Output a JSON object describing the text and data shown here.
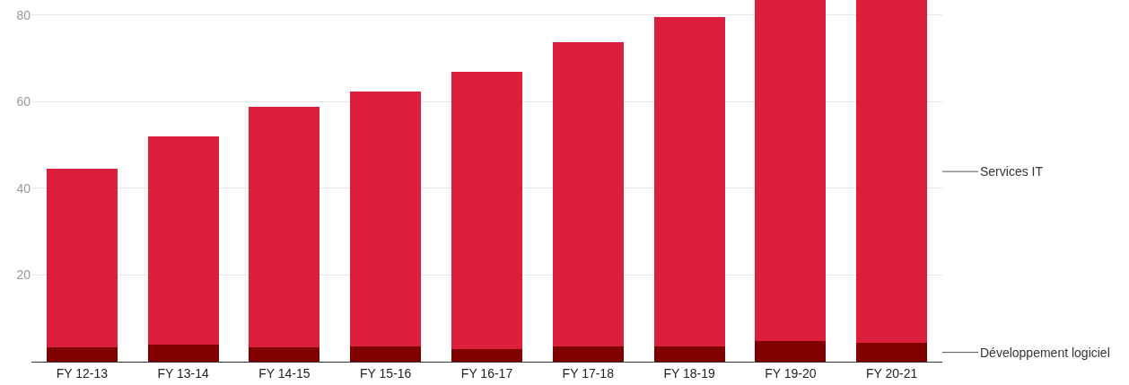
{
  "chart_data": {
    "type": "bar",
    "stacked": true,
    "categories": [
      "FY 12-13",
      "FY 13-14",
      "FY 14-15",
      "FY 15-16",
      "FY 16-17",
      "FY 17-18",
      "FY 18-19",
      "FY 19-20",
      "FY 20-21"
    ],
    "series": [
      {
        "name": "Développement logiciel",
        "color": "#800000",
        "values": [
          3.3,
          3.9,
          3.3,
          3.5,
          2.9,
          3.5,
          3.5,
          4.8,
          4.3
        ]
      },
      {
        "name": "Services IT",
        "color": "#dc1f3c",
        "values": [
          41.3,
          48.2,
          55.6,
          58.9,
          64.0,
          70.3,
          76.0,
          78.7,
          79.2
        ]
      }
    ],
    "ylim": [
      0,
      83.5
    ],
    "yticks": [
      20,
      40,
      60,
      80
    ],
    "grid": "y",
    "legend": false
  }
}
